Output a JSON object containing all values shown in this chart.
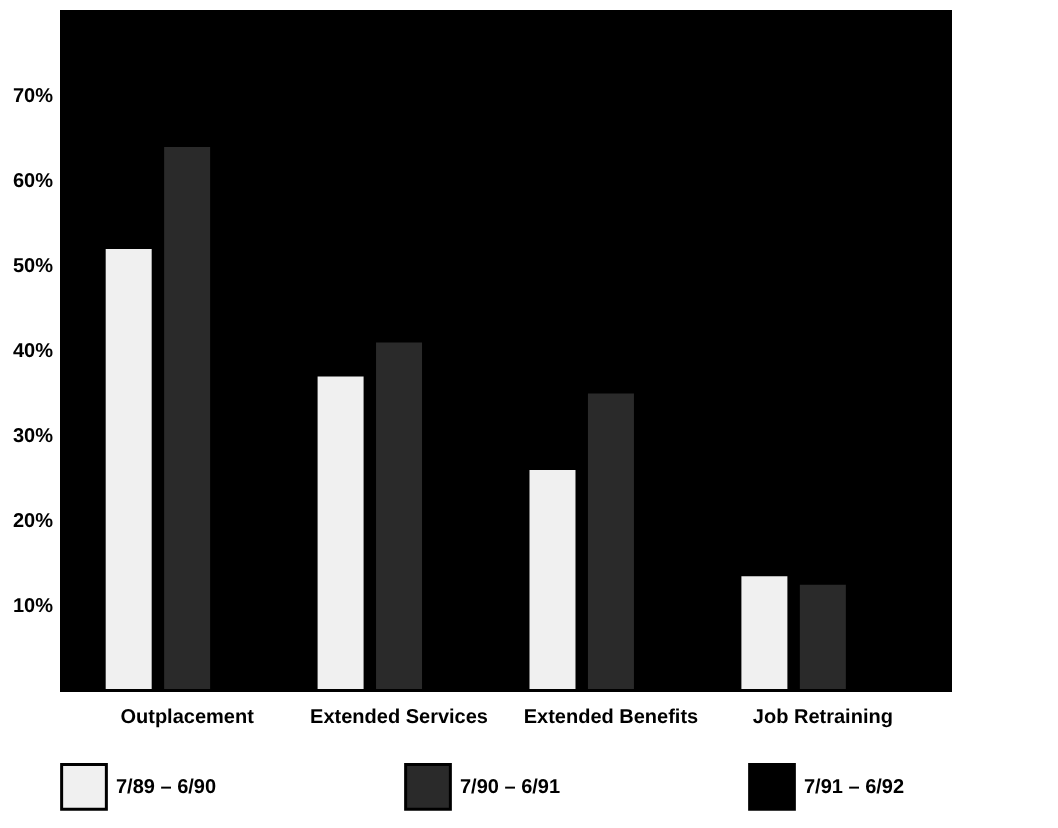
{
  "chart_data": {
    "type": "bar",
    "categories": [
      "Outplacement",
      "Extended Services",
      "Extended Benefits",
      "Job Retraining"
    ],
    "series": [
      {
        "name": "7/89 – 6/90",
        "color": "#f0f0f0",
        "values": [
          52,
          37,
          26,
          13.5
        ]
      },
      {
        "name": "7/90 – 6/91",
        "color": "#2a2a2a",
        "values": [
          64,
          41,
          35,
          12.5
        ]
      },
      {
        "name": "7/91 – 6/92",
        "color": "#000000",
        "values": [
          null,
          null,
          null,
          null
        ]
      }
    ],
    "ylim": [
      0,
      80
    ],
    "yticks": [
      {
        "value": 10,
        "label": "10%"
      },
      {
        "value": 20,
        "label": "20%"
      },
      {
        "value": 30,
        "label": "30%"
      },
      {
        "value": 40,
        "label": "40%"
      },
      {
        "value": 50,
        "label": "50%"
      },
      {
        "value": 60,
        "label": "60%"
      },
      {
        "value": 70,
        "label": "70%"
      }
    ],
    "grid": false,
    "legend": "bottom"
  }
}
